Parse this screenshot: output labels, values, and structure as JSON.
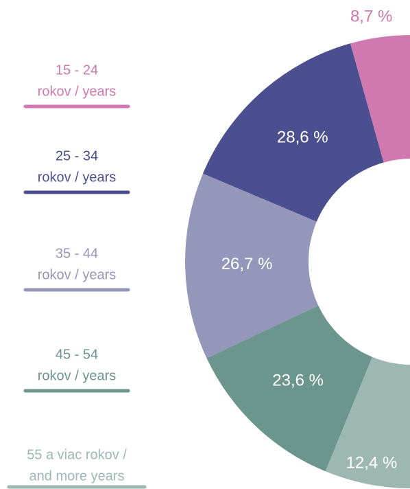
{
  "chart_data": {
    "type": "donut",
    "categories": [
      [
        "15 - 24",
        "rokov / years"
      ],
      [
        "25 - 34",
        "rokov / years"
      ],
      [
        "35 - 44",
        "rokov / years"
      ],
      [
        "45 - 54",
        "rokov / years"
      ],
      [
        "55 a viac rokov /",
        "and more years"
      ]
    ],
    "values": [
      8.7,
      28.6,
      26.7,
      23.6,
      12.4
    ],
    "value_labels": [
      "8,7 %",
      "28,6 %",
      "26,7 %",
      "23,6 %",
      "12,4 %"
    ],
    "colors": [
      "#cf79b0",
      "#4b4f8f",
      "#9497ba",
      "#6b958d",
      "#9db8b2"
    ]
  }
}
